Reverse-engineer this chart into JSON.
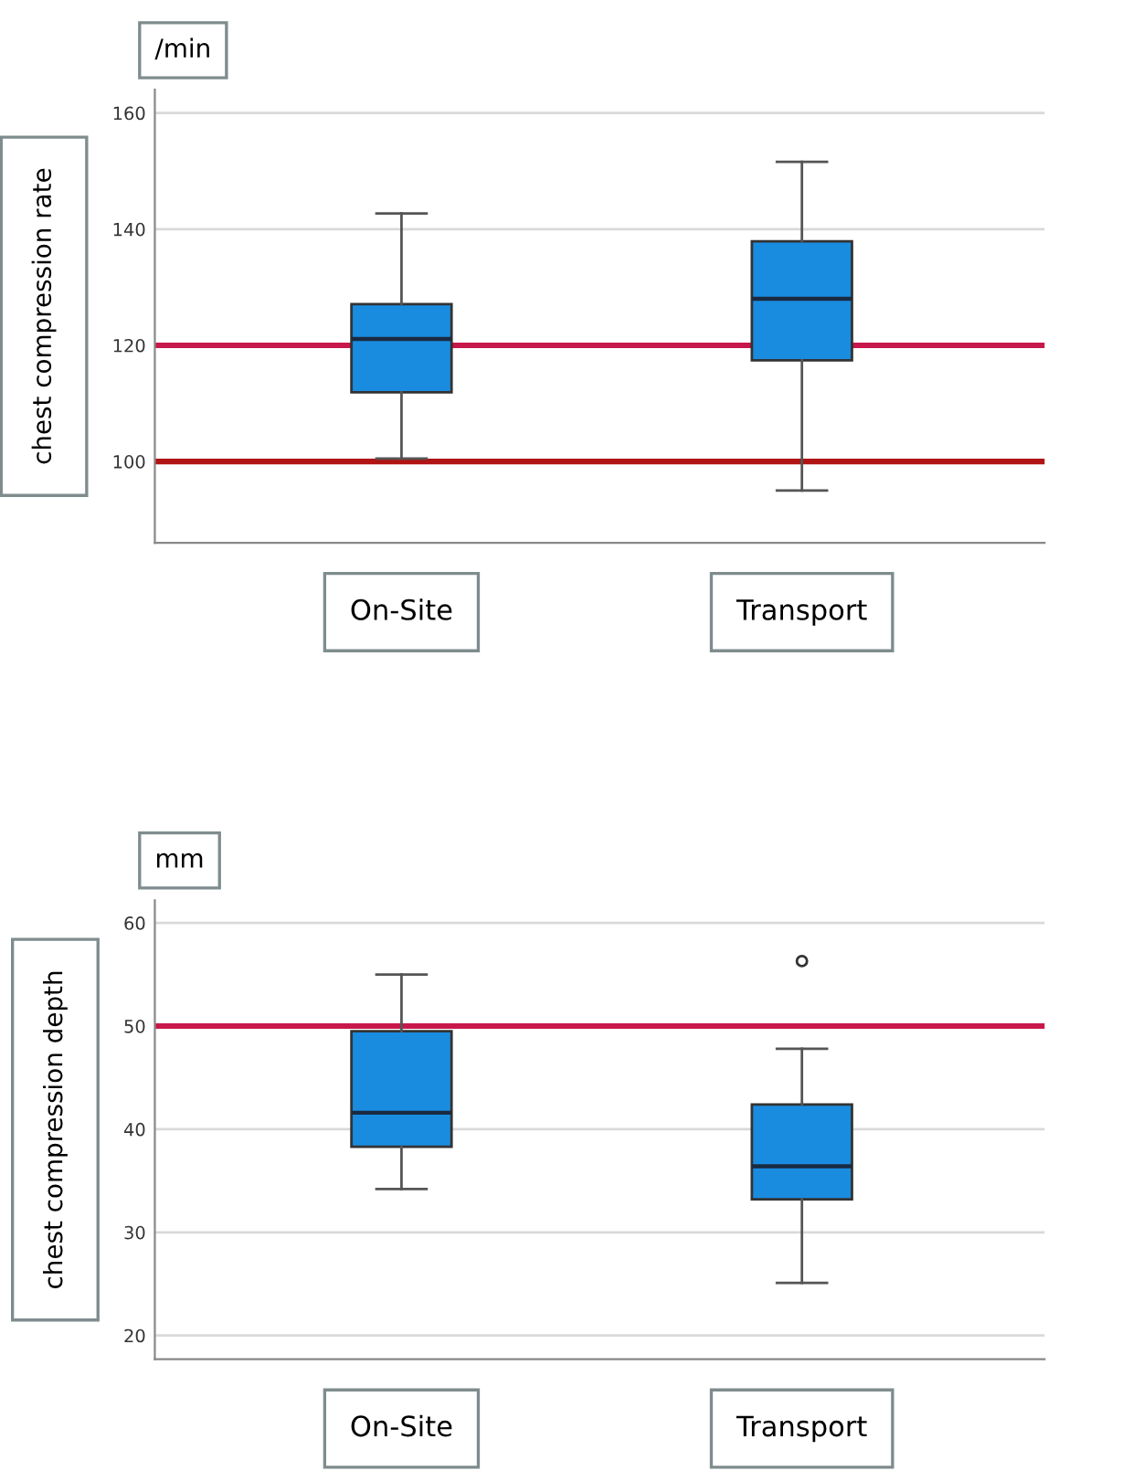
{
  "chart_data": [
    {
      "type": "box",
      "ylabel": "chest compression rate",
      "annotations": [
        "/min"
      ],
      "categories": [
        "On-Site",
        "Transport"
      ],
      "color": "#1a8ce0",
      "boxes": [
        {
          "low": 100.5,
          "q1": 111.9,
          "median": 121.1,
          "q3": 127.1,
          "high": 142.7
        },
        {
          "low": 95.0,
          "q1": 117.4,
          "median": 128.0,
          "q3": 137.9,
          "high": 151.6
        }
      ],
      "ylim": [
        86,
        164
      ],
      "yticks": [
        100,
        120,
        140,
        160
      ],
      "grid": "y",
      "ref_lines": [
        {
          "axis": "y",
          "value": 120,
          "color": "#c8174a"
        },
        {
          "axis": "y",
          "value": 100,
          "color": "#b01414"
        }
      ]
    },
    {
      "type": "box",
      "ylabel": "chest compression depth",
      "annotations": [
        "mm"
      ],
      "categories": [
        "On-Site",
        "Transport"
      ],
      "color": "#1a8ce0",
      "boxes": [
        {
          "low": 34.2,
          "q1": 38.3,
          "median": 41.6,
          "q3": 49.5,
          "high": 55.0
        },
        {
          "low": 25.1,
          "q1": 33.2,
          "median": 36.4,
          "q3": 42.4,
          "high": 47.8,
          "outliers": [
            56.3
          ]
        }
      ],
      "ylim": [
        17.7,
        62.2
      ],
      "yticks": [
        20,
        30,
        40,
        50,
        60
      ],
      "grid": "y",
      "ref_lines": [
        {
          "axis": "y",
          "value": 50,
          "color": "#c8174a"
        }
      ]
    }
  ]
}
